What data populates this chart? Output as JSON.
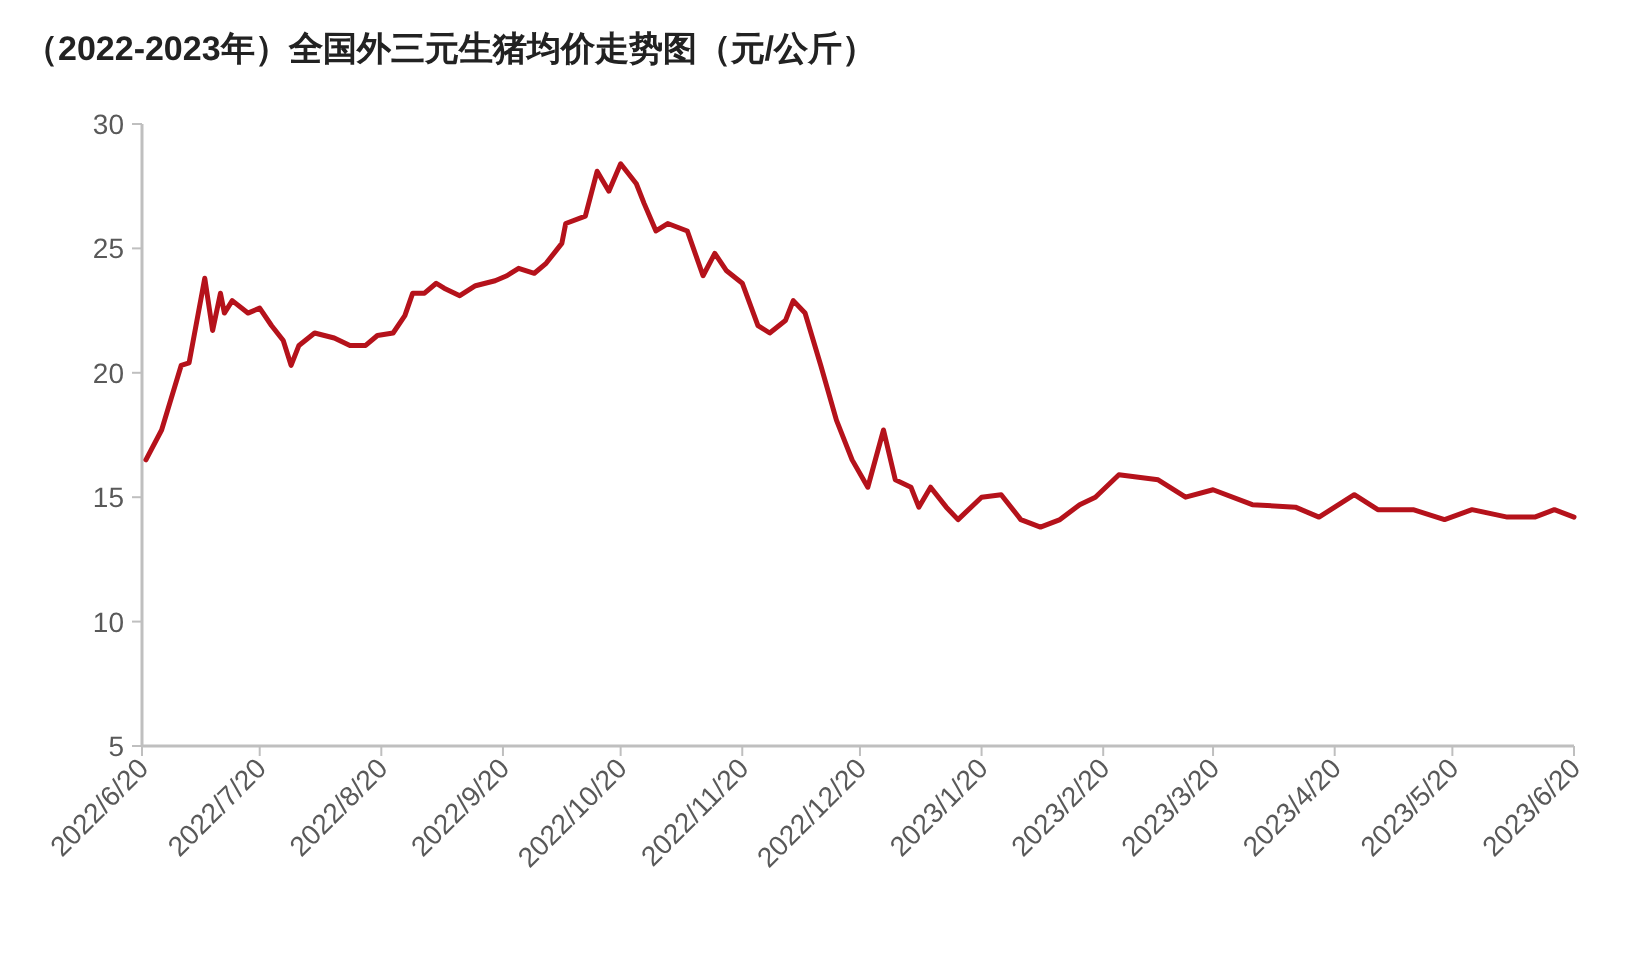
{
  "chart_data": {
    "type": "line",
    "title": "（2022-2023年）全国外三元生猪均价走势图（元/公斤）",
    "x": [
      "2022-06-21",
      "2022-06-25",
      "2022-06-30",
      "2022-07-02",
      "2022-07-06",
      "2022-07-08",
      "2022-07-10",
      "2022-07-11",
      "2022-07-13",
      "2022-07-17",
      "2022-07-20",
      "2022-07-23",
      "2022-07-26",
      "2022-07-28",
      "2022-07-30",
      "2022-08-03",
      "2022-08-08",
      "2022-08-12",
      "2022-08-16",
      "2022-08-19",
      "2022-08-23",
      "2022-08-26",
      "2022-08-28",
      "2022-08-31",
      "2022-09-03",
      "2022-09-05",
      "2022-09-09",
      "2022-09-13",
      "2022-09-18",
      "2022-09-21",
      "2022-09-24",
      "2022-09-28",
      "2022-10-01",
      "2022-10-05",
      "2022-10-06",
      "2022-10-11",
      "2022-10-14",
      "2022-10-17",
      "2022-10-20",
      "2022-10-24",
      "2022-10-26",
      "2022-10-29",
      "2022-11-01",
      "2022-11-06",
      "2022-11-10",
      "2022-11-13",
      "2022-11-16",
      "2022-11-20",
      "2022-11-24",
      "2022-11-27",
      "2022-12-01",
      "2022-12-03",
      "2022-12-06",
      "2022-12-10",
      "2022-12-14",
      "2022-12-18",
      "2022-12-22",
      "2022-12-26",
      "2022-12-29",
      "2023-01-02",
      "2023-01-04",
      "2023-01-07",
      "2023-01-11",
      "2023-01-14",
      "2023-01-20",
      "2023-01-25",
      "2023-01-30",
      "2023-02-04",
      "2023-02-09",
      "2023-02-14",
      "2023-02-18",
      "2023-02-24",
      "2023-03-06",
      "2023-03-13",
      "2023-03-20",
      "2023-03-30",
      "2023-04-10",
      "2023-04-16",
      "2023-04-25",
      "2023-05-01",
      "2023-05-10",
      "2023-05-18",
      "2023-05-25",
      "2023-06-03",
      "2023-06-10",
      "2023-06-15",
      "2023-06-20"
    ],
    "series": [
      {
        "color": "#b5121b",
        "values": [
          16.5,
          17.7,
          20.3,
          20.4,
          23.8,
          21.7,
          23.2,
          22.4,
          22.9,
          22.4,
          22.6,
          21.9,
          21.3,
          20.3,
          21.1,
          21.6,
          21.4,
          21.1,
          21.1,
          21.5,
          21.6,
          22.3,
          23.2,
          23.2,
          23.6,
          23.4,
          23.1,
          23.5,
          23.7,
          23.9,
          24.2,
          24.0,
          24.4,
          25.2,
          26.0,
          26.3,
          28.1,
          27.3,
          28.4,
          27.6,
          26.8,
          25.7,
          26.0,
          25.7,
          23.9,
          24.8,
          24.1,
          23.6,
          21.9,
          21.6,
          22.1,
          22.9,
          22.4,
          20.3,
          18.1,
          16.5,
          15.4,
          17.7,
          15.7,
          15.4,
          14.6,
          15.4,
          14.6,
          14.1,
          15.0,
          15.1,
          14.1,
          13.8,
          14.1,
          14.7,
          15.0,
          15.9,
          15.7,
          15.0,
          15.3,
          14.7,
          14.6,
          14.2,
          15.1,
          14.5,
          14.5,
          14.1,
          14.5,
          14.2,
          14.2,
          14.5,
          14.2
        ]
      }
    ],
    "xlim": [
      "2022-06-20",
      "2023-06-20"
    ],
    "xticks": [
      {
        "value": "2022-06-20",
        "label": "2022/6/20"
      },
      {
        "value": "2022-07-20",
        "label": "2022/7/20"
      },
      {
        "value": "2022-08-20",
        "label": "2022/8/20"
      },
      {
        "value": "2022-09-20",
        "label": "2022/9/20"
      },
      {
        "value": "2022-10-20",
        "label": "2022/10/20"
      },
      {
        "value": "2022-11-20",
        "label": "2022/11/20"
      },
      {
        "value": "2022-12-20",
        "label": "2022/12/20"
      },
      {
        "value": "2023-01-20",
        "label": "2023/1/20"
      },
      {
        "value": "2023-02-20",
        "label": "2023/2/20"
      },
      {
        "value": "2023-03-20",
        "label": "2023/3/20"
      },
      {
        "value": "2023-04-20",
        "label": "2023/4/20"
      },
      {
        "value": "2023-05-20",
        "label": "2023/5/20"
      },
      {
        "value": "2023-06-20",
        "label": "2023/6/20"
      }
    ],
    "ylim": [
      5,
      30
    ],
    "yticks": [
      5,
      10,
      15,
      20,
      25,
      30
    ],
    "grid": false,
    "marker": "none",
    "line_style": "solid"
  }
}
